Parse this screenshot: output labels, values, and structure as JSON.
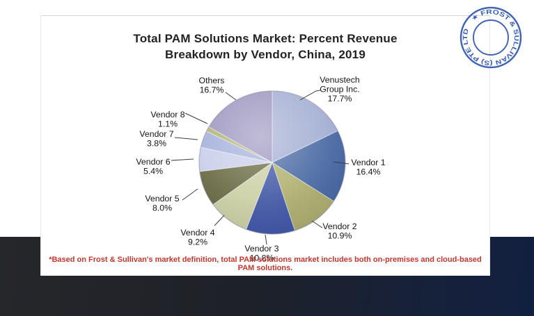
{
  "slide": {
    "title_line1": "Total PAM Solutions Market: Percent Revenue",
    "title_line2": "Breakdown by Vendor, China, 2019",
    "footnote": "*Based on Frost & Sullivan's market definition, total PAM solutions market includes both on-premises and cloud-based PAM solutions.",
    "footnote_color": "#c0372e"
  },
  "stamp": {
    "text": "★ FROST & SULLIVAN (S) PTE LTD",
    "color": "#2f55ae"
  },
  "chart_data": {
    "type": "pie",
    "title": "Total PAM Solutions Market: Percent Revenue Breakdown by Vendor, China, 2019",
    "start_angle_deg": 0,
    "direction": "clockwise",
    "legend_position": "none",
    "slices": [
      {
        "label": "Venustech Group Inc.",
        "label_lines": [
          "Venustech",
          "Group Inc."
        ],
        "value": 17.7,
        "pct_label": "17.7%",
        "color": "#a2add2"
      },
      {
        "label": "Vendor 1",
        "label_lines": [
          "Vendor 1"
        ],
        "value": 16.4,
        "pct_label": "16.4%",
        "color": "#4667a2"
      },
      {
        "label": "Vendor 2",
        "label_lines": [
          "Vendor 2"
        ],
        "value": 10.9,
        "pct_label": "10.9%",
        "color": "#aeae6c"
      },
      {
        "label": "Vendor 3",
        "label_lines": [
          "Vendor 3"
        ],
        "value": 10.8,
        "pct_label": "10.8%",
        "color": "#3f55a4"
      },
      {
        "label": "Vendor 4",
        "label_lines": [
          "Vendor 4"
        ],
        "value": 9.2,
        "pct_label": "9.2%",
        "color": "#cbcfa2"
      },
      {
        "label": "Vendor 5",
        "label_lines": [
          "Vendor 5"
        ],
        "value": 8.0,
        "pct_label": "8.0%",
        "color": "#66673f"
      },
      {
        "label": "Vendor 6",
        "label_lines": [
          "Vendor 6"
        ],
        "value": 5.4,
        "pct_label": "5.4%",
        "color": "#c7cee9"
      },
      {
        "label": "Vendor 7",
        "label_lines": [
          "Vendor 7"
        ],
        "value": 3.8,
        "pct_label": "3.8%",
        "color": "#a2aeda"
      },
      {
        "label": "Vendor 8",
        "label_lines": [
          "Vendor 8"
        ],
        "value": 1.1,
        "pct_label": "1.1%",
        "color": "#b0b06e"
      },
      {
        "label": "Others",
        "label_lines": [
          "Others"
        ],
        "value": 16.7,
        "pct_label": "16.7%",
        "color": "#9a93bd"
      }
    ]
  }
}
